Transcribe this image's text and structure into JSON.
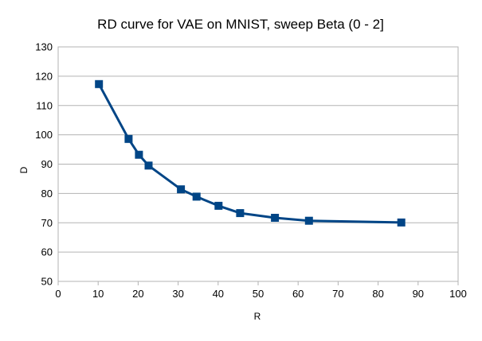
{
  "chart_data": {
    "type": "scatter",
    "title": "RD curve for VAE on MNIST, sweep Beta (0 - 2]",
    "xlabel": "R",
    "ylabel": "D",
    "xlim": [
      0,
      100
    ],
    "ylim": [
      50,
      130
    ],
    "xticks": [
      0,
      10,
      20,
      30,
      40,
      50,
      60,
      70,
      80,
      90,
      100
    ],
    "yticks": [
      50,
      60,
      70,
      80,
      90,
      100,
      110,
      120,
      130
    ],
    "grid": "horizontal",
    "legend": "none",
    "series": [
      {
        "color": "#004586",
        "marker": "square",
        "connected": true,
        "points": [
          {
            "x": 10.2,
            "y": 117.3
          },
          {
            "x": 17.6,
            "y": 98.6
          },
          {
            "x": 20.2,
            "y": 93.2
          },
          {
            "x": 22.6,
            "y": 89.5
          },
          {
            "x": 30.7,
            "y": 81.4
          },
          {
            "x": 34.6,
            "y": 78.9
          },
          {
            "x": 40.1,
            "y": 75.8
          },
          {
            "x": 45.5,
            "y": 73.3
          },
          {
            "x": 54.2,
            "y": 71.7
          },
          {
            "x": 62.7,
            "y": 70.7
          },
          {
            "x": 85.8,
            "y": 70.1
          }
        ]
      }
    ]
  }
}
